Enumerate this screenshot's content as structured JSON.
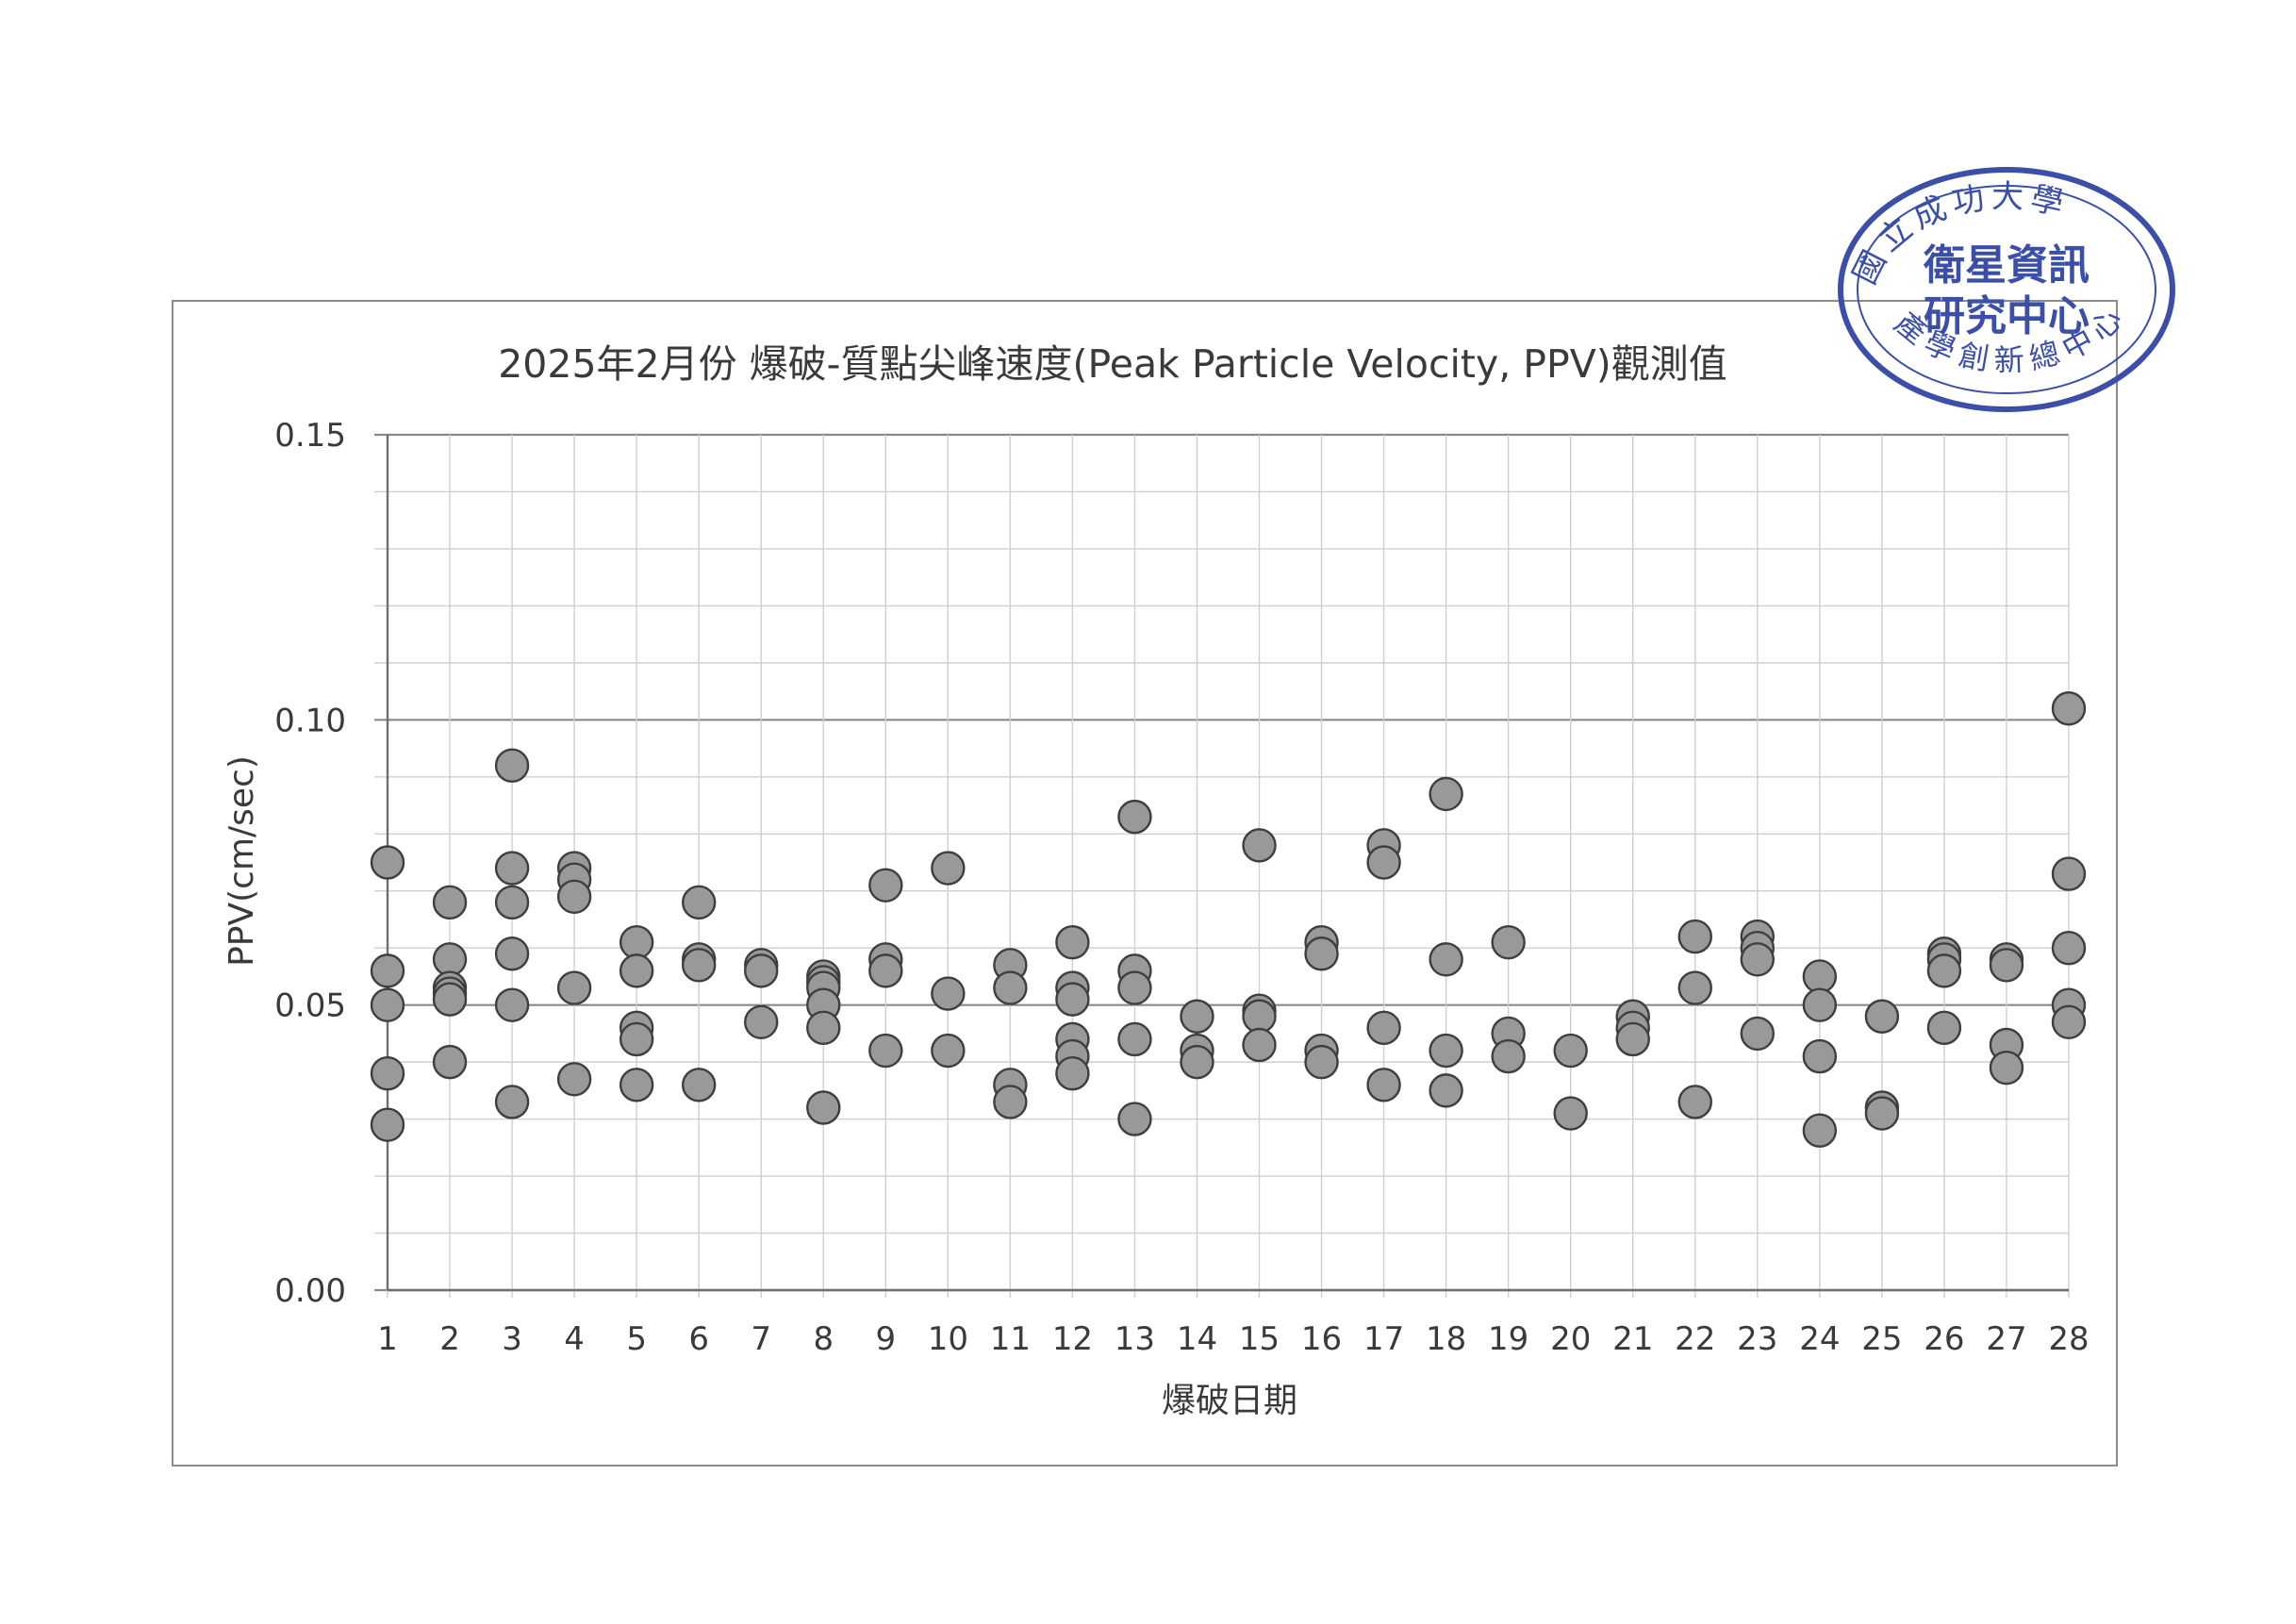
{
  "chart_data": {
    "type": "scatter",
    "title": "2025年2月份 爆破-質點尖峰速度(Peak Particle Velocity, PPV)觀測值",
    "xlabel": "爆破日期",
    "ylabel": "PPV(cm/sec)",
    "xlim": [
      1,
      28
    ],
    "ylim": [
      0,
      0.15
    ],
    "x_ticks": [
      "1",
      "2",
      "3",
      "4",
      "5",
      "6",
      "7",
      "8",
      "9",
      "10",
      "11",
      "12",
      "13",
      "14",
      "15",
      "16",
      "17",
      "18",
      "19",
      "20",
      "21",
      "22",
      "23",
      "24",
      "25",
      "26",
      "27",
      "28"
    ],
    "y_ticks": [
      "0.00",
      "0.05",
      "0.10",
      "0.15"
    ],
    "grid": "on",
    "marker_color": "#999999",
    "series": [
      {
        "points": [
          [
            1,
            0.075
          ],
          [
            1,
            0.056
          ],
          [
            1,
            0.05
          ],
          [
            1,
            0.038
          ],
          [
            1,
            0.029
          ],
          [
            2,
            0.068
          ],
          [
            2,
            0.058
          ],
          [
            2,
            0.053
          ],
          [
            2,
            0.052
          ],
          [
            2,
            0.051
          ],
          [
            2,
            0.04
          ],
          [
            3,
            0.092
          ],
          [
            3,
            0.074
          ],
          [
            3,
            0.068
          ],
          [
            3,
            0.059
          ],
          [
            3,
            0.05
          ],
          [
            3,
            0.033
          ],
          [
            4,
            0.074
          ],
          [
            4,
            0.072
          ],
          [
            4,
            0.069
          ],
          [
            4,
            0.053
          ],
          [
            4,
            0.037
          ],
          [
            5,
            0.061
          ],
          [
            5,
            0.056
          ],
          [
            5,
            0.046
          ],
          [
            5,
            0.044
          ],
          [
            5,
            0.036
          ],
          [
            6,
            0.068
          ],
          [
            6,
            0.058
          ],
          [
            6,
            0.057
          ],
          [
            6,
            0.036
          ],
          [
            7,
            0.057
          ],
          [
            7,
            0.056
          ],
          [
            7,
            0.047
          ],
          [
            8,
            0.055
          ],
          [
            8,
            0.054
          ],
          [
            8,
            0.053
          ],
          [
            8,
            0.05
          ],
          [
            8,
            0.046
          ],
          [
            8,
            0.032
          ],
          [
            9,
            0.071
          ],
          [
            9,
            0.058
          ],
          [
            9,
            0.056
          ],
          [
            9,
            0.042
          ],
          [
            10,
            0.074
          ],
          [
            10,
            0.052
          ],
          [
            10,
            0.042
          ],
          [
            11,
            0.057
          ],
          [
            11,
            0.053
          ],
          [
            11,
            0.036
          ],
          [
            11,
            0.033
          ],
          [
            12,
            0.061
          ],
          [
            12,
            0.053
          ],
          [
            12,
            0.051
          ],
          [
            12,
            0.044
          ],
          [
            12,
            0.041
          ],
          [
            12,
            0.038
          ],
          [
            13,
            0.083
          ],
          [
            13,
            0.056
          ],
          [
            13,
            0.053
          ],
          [
            13,
            0.044
          ],
          [
            13,
            0.03
          ],
          [
            14,
            0.048
          ],
          [
            14,
            0.042
          ],
          [
            14,
            0.04
          ],
          [
            15,
            0.078
          ],
          [
            15,
            0.049
          ],
          [
            15,
            0.048
          ],
          [
            15,
            0.043
          ],
          [
            16,
            0.061
          ],
          [
            16,
            0.059
          ],
          [
            16,
            0.042
          ],
          [
            16,
            0.04
          ],
          [
            17,
            0.078
          ],
          [
            17,
            0.075
          ],
          [
            17,
            0.046
          ],
          [
            17,
            0.036
          ],
          [
            18,
            0.087
          ],
          [
            18,
            0.058
          ],
          [
            18,
            0.042
          ],
          [
            18,
            0.035
          ],
          [
            19,
            0.061
          ],
          [
            19,
            0.045
          ],
          [
            19,
            0.041
          ],
          [
            20,
            0.042
          ],
          [
            20,
            0.031
          ],
          [
            21,
            0.048
          ],
          [
            21,
            0.046
          ],
          [
            21,
            0.044
          ],
          [
            22,
            0.062
          ],
          [
            22,
            0.053
          ],
          [
            22,
            0.033
          ],
          [
            23,
            0.062
          ],
          [
            23,
            0.06
          ],
          [
            23,
            0.058
          ],
          [
            23,
            0.045
          ],
          [
            24,
            0.055
          ],
          [
            24,
            0.05
          ],
          [
            24,
            0.041
          ],
          [
            24,
            0.028
          ],
          [
            25,
            0.048
          ],
          [
            25,
            0.032
          ],
          [
            25,
            0.031
          ],
          [
            26,
            0.059
          ],
          [
            26,
            0.058
          ],
          [
            26,
            0.056
          ],
          [
            26,
            0.046
          ],
          [
            27,
            0.058
          ],
          [
            27,
            0.057
          ],
          [
            27,
            0.043
          ],
          [
            27,
            0.039
          ],
          [
            28,
            0.102
          ],
          [
            28,
            0.073
          ],
          [
            28,
            0.06
          ],
          [
            28,
            0.05
          ],
          [
            28,
            0.047
          ]
        ]
      }
    ]
  },
  "stamp": {
    "outer_text": "國立成功大學產學創新總中心",
    "inner_line1": "衛星資訊",
    "inner_line2": "研究中心",
    "color": "#3b4fa8"
  }
}
